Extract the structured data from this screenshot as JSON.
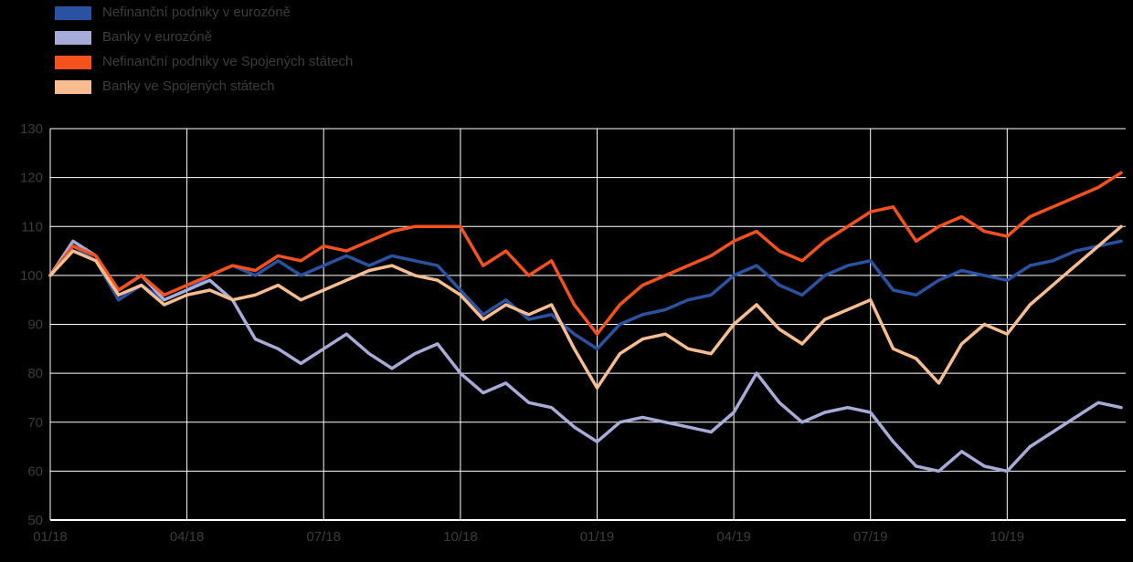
{
  "page": {
    "background_color": "#000000",
    "grid_color": "#ffffff",
    "text_color": "#3c3c3c"
  },
  "chart_data": {
    "type": "line",
    "title": "",
    "xlabel": "",
    "ylabel": "",
    "xlim": [
      0,
      23.6
    ],
    "ylim": [
      50,
      130
    ],
    "grid": true,
    "legend_position": "top-left",
    "yticks": [
      50,
      60,
      70,
      80,
      90,
      100,
      110,
      120,
      130
    ],
    "xtick_positions": [
      0,
      3,
      6,
      9,
      12,
      15,
      18,
      21
    ],
    "xtick_labels": [
      "01/18",
      "04/18",
      "07/18",
      "10/18",
      "01/19",
      "04/19",
      "07/19",
      "10/19"
    ],
    "x_unit": "months since 01/2018",
    "x": [
      0,
      0.5,
      1,
      1.5,
      2,
      2.5,
      3,
      3.5,
      4,
      4.5,
      5,
      5.5,
      6,
      6.5,
      7,
      7.5,
      8,
      8.5,
      9,
      9.5,
      10,
      10.5,
      11,
      11.5,
      12,
      12.5,
      13,
      13.5,
      14,
      14.5,
      15,
      15.5,
      16,
      16.5,
      17,
      17.5,
      18,
      18.5,
      19,
      19.5,
      20,
      20.5,
      21,
      21.5,
      22,
      22.5,
      23,
      23.5
    ],
    "series": [
      {
        "name": "Nefinanční podniky v eurozóně",
        "color": "#2a52a2",
        "values": [
          100,
          106,
          103,
          95,
          98,
          95,
          97,
          100,
          102,
          100,
          103,
          100,
          102,
          104,
          102,
          104,
          103,
          102,
          97,
          92,
          95,
          91,
          92,
          88,
          85,
          90,
          92,
          93,
          95,
          96,
          100,
          102,
          98,
          96,
          100,
          102,
          103,
          97,
          96,
          99,
          101,
          100,
          99,
          102,
          103,
          105,
          106,
          107
        ]
      },
      {
        "name": "Banky v eurozóně",
        "color": "#a6abd7",
        "values": [
          100,
          107,
          104,
          97,
          100,
          95,
          97,
          99,
          95,
          87,
          85,
          82,
          85,
          88,
          84,
          81,
          84,
          86,
          80,
          76,
          78,
          74,
          73,
          69,
          66,
          70,
          71,
          70,
          69,
          68,
          72,
          80,
          74,
          70,
          72,
          73,
          72,
          66,
          61,
          60,
          64,
          61,
          60,
          65,
          68,
          71,
          74,
          73
        ]
      },
      {
        "name": "Nefinanční podniky ve Spojených státech",
        "color": "#f4511c",
        "values": [
          100,
          106,
          104,
          97,
          100,
          96,
          98,
          100,
          102,
          101,
          104,
          103,
          106,
          105,
          107,
          109,
          110,
          110,
          110,
          102,
          105,
          100,
          103,
          94,
          88,
          94,
          98,
          100,
          102,
          104,
          107,
          109,
          105,
          103,
          107,
          110,
          113,
          114,
          107,
          110,
          112,
          109,
          108,
          112,
          114,
          116,
          118,
          121
        ]
      },
      {
        "name": "Banky ve Spojených státech",
        "color": "#f7bd90",
        "values": [
          100,
          105,
          103,
          96,
          98,
          94,
          96,
          97,
          95,
          96,
          98,
          95,
          97,
          99,
          101,
          102,
          100,
          99,
          96,
          91,
          94,
          92,
          94,
          85,
          77,
          84,
          87,
          88,
          85,
          84,
          90,
          94,
          89,
          86,
          91,
          93,
          95,
          85,
          83,
          78,
          86,
          90,
          88,
          94,
          98,
          102,
          106,
          110
        ]
      }
    ]
  }
}
